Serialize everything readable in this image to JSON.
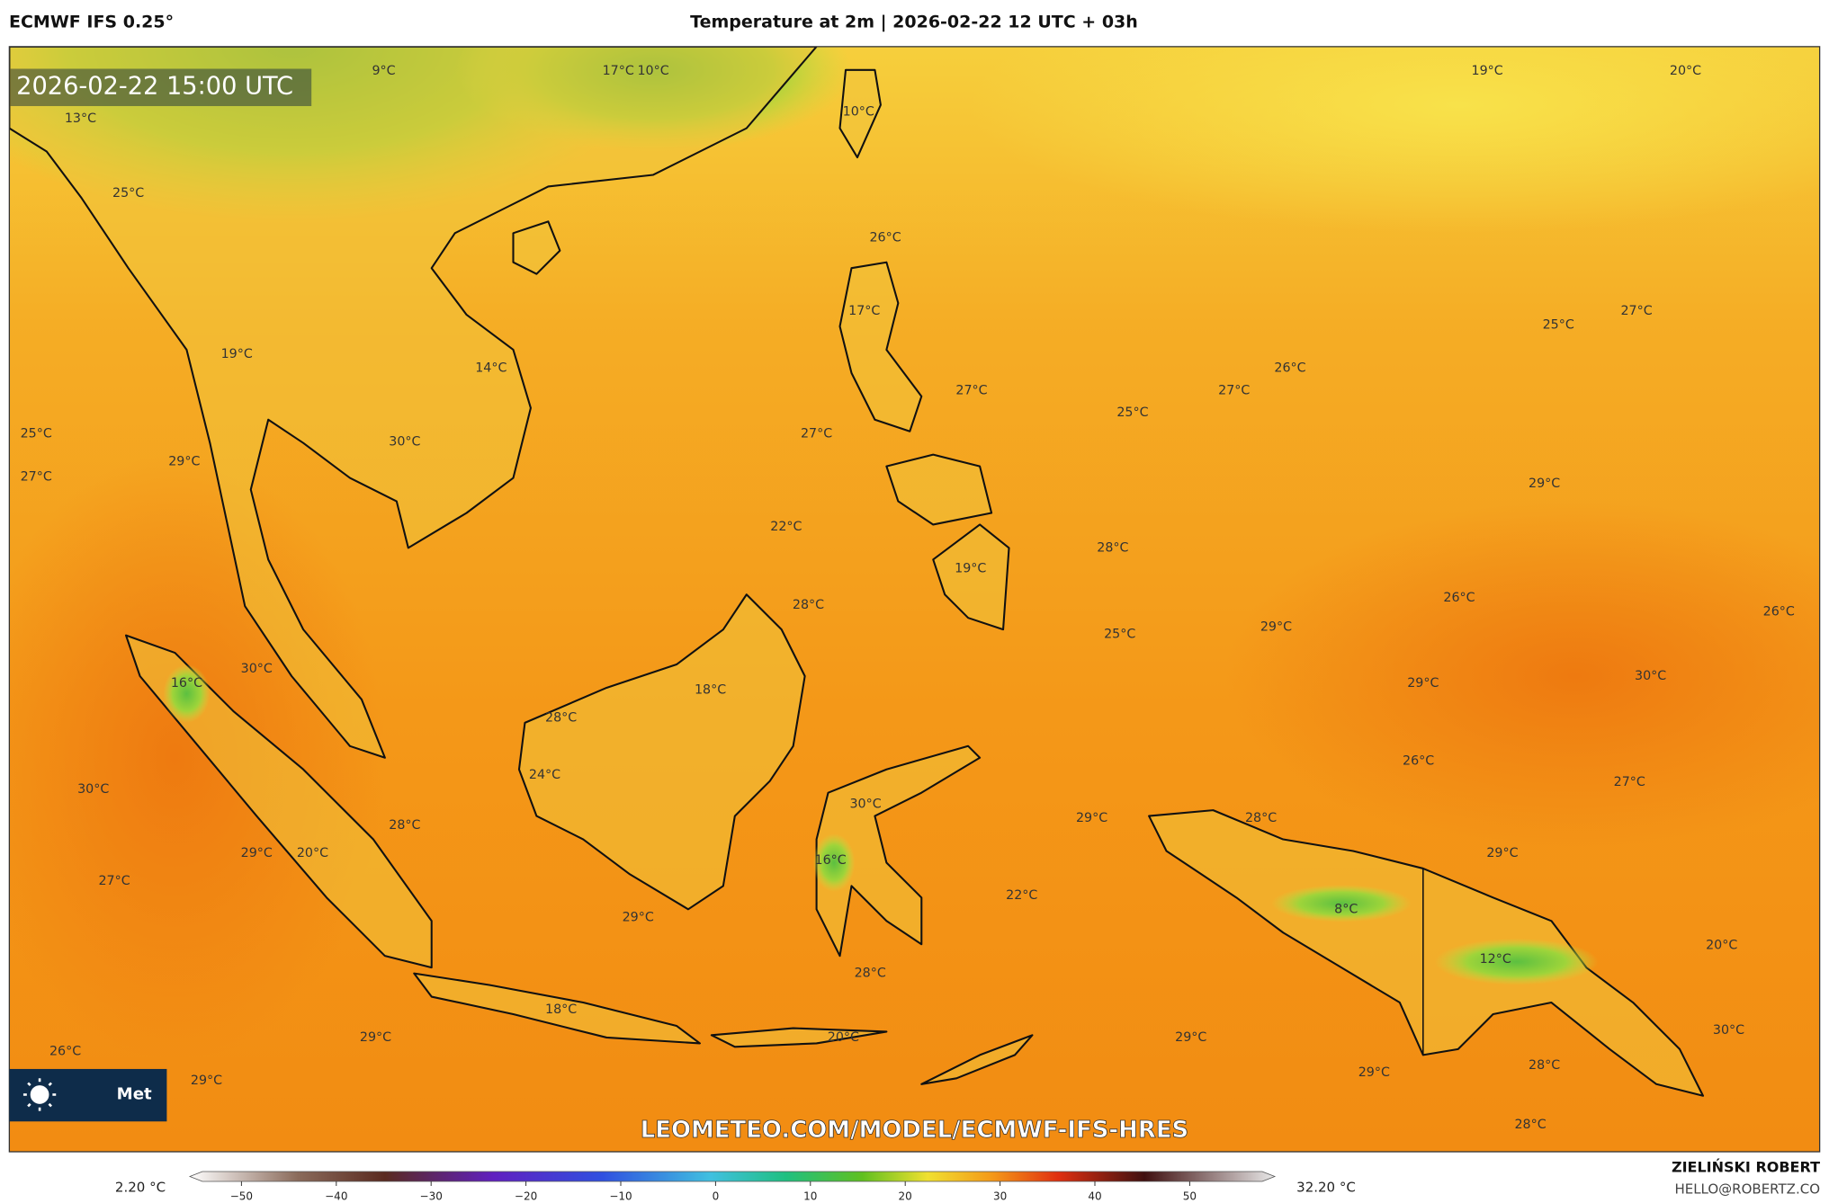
{
  "header": {
    "model": "ECMWF IFS 0.25°",
    "title": "Temperature at 2m | 2026-02-22 12 UTC + 03h"
  },
  "map": {
    "timestamp": "2026-02-22 15:00 UTC",
    "logo": "Met",
    "watermark": "LEOMETEO.COM/MODEL/ECMWF-IFS-HRES",
    "labels": [
      "9°C",
      "17°C",
      "10°C",
      "19°C",
      "20°C",
      "10°C",
      "13°C",
      "25°C",
      "26°C",
      "17°C",
      "25°C",
      "27°C",
      "26°C",
      "19°C",
      "14°C",
      "27°C",
      "27°C",
      "25°C",
      "30°C",
      "27°C",
      "25°C",
      "29°C",
      "27°C",
      "29°C",
      "22°C",
      "28°C",
      "19°C",
      "28°C",
      "26°C",
      "26°C",
      "29°C",
      "25°C",
      "30°C",
      "16°C",
      "18°C",
      "29°C",
      "30°C",
      "28°C",
      "26°C",
      "24°C",
      "27°C",
      "30°C",
      "30°C",
      "29°C",
      "28°C",
      "28°C",
      "29°C",
      "20°C",
      "29°C",
      "16°C",
      "27°C",
      "22°C",
      "8°C",
      "29°C",
      "20°C",
      "12°C",
      "28°C",
      "18°C",
      "26°C",
      "29°C",
      "20°C",
      "29°C",
      "30°C",
      "28°C",
      "29°C",
      "29°C",
      "28°C"
    ]
  },
  "colorbar": {
    "min": "2.20 °C",
    "max": "32.20 °C",
    "ticks": [
      "−50",
      "−40",
      "−30",
      "−20",
      "−10",
      "0",
      "10",
      "20",
      "30",
      "40",
      "50"
    ]
  },
  "credit": {
    "name": "ZIELIŃSKI ROBERT",
    "email": "HELLO@ROBERTZ.CO"
  }
}
